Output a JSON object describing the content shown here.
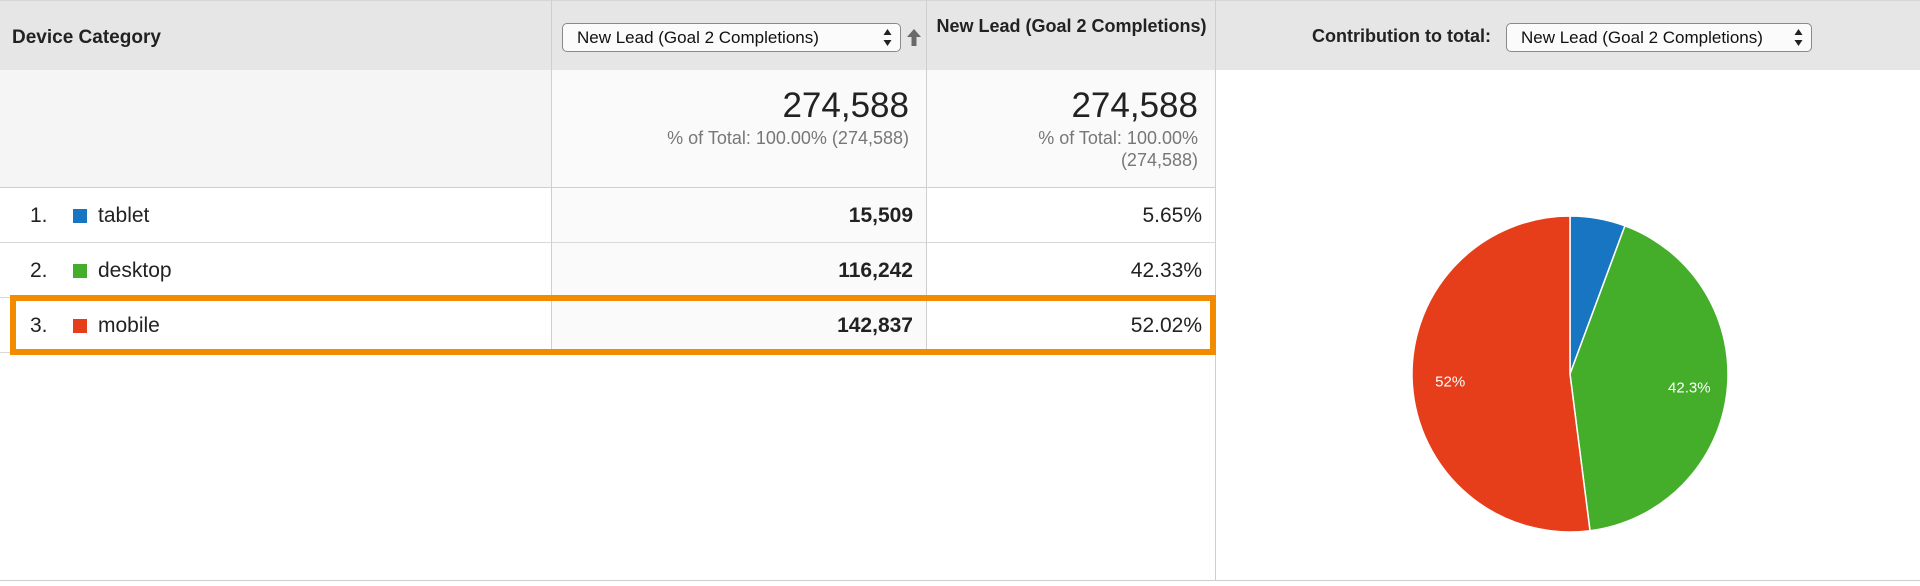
{
  "header": {
    "category_label": "Device Category",
    "sort_select_value": "New Lead (Goal 2 Completions)",
    "column_title": "New Lead (Goal 2 Completions)",
    "contribution_label": "Contribution to total:",
    "contribution_select_value": "New Lead (Goal 2 Completions)"
  },
  "summary": {
    "total_a": "274,588",
    "total_a_sub": "% of Total: 100.00% (274,588)",
    "total_b": "274,588",
    "total_b_sub_line1": "% of Total: 100.00%",
    "total_b_sub_line2": "(274,588)"
  },
  "rows": [
    {
      "rank": "1.",
      "label": "tablet",
      "value": "15,509",
      "percent": "5.65%",
      "color": "#1875c2"
    },
    {
      "rank": "2.",
      "label": "desktop",
      "value": "116,242",
      "percent": "42.33%",
      "color": "#44ae2b"
    },
    {
      "rank": "3.",
      "label": "mobile",
      "value": "142,837",
      "percent": "52.02%",
      "color": "#e63e1a"
    }
  ],
  "highlight_color": "#f38b00",
  "chart_data": {
    "type": "pie",
    "categories": [
      "tablet",
      "desktop",
      "mobile"
    ],
    "values": [
      5.65,
      42.33,
      52.02
    ],
    "colors": [
      "#1875c2",
      "#44ae2b",
      "#e63e1a"
    ],
    "slice_labels": [
      "",
      "42.3%",
      "52%"
    ]
  }
}
